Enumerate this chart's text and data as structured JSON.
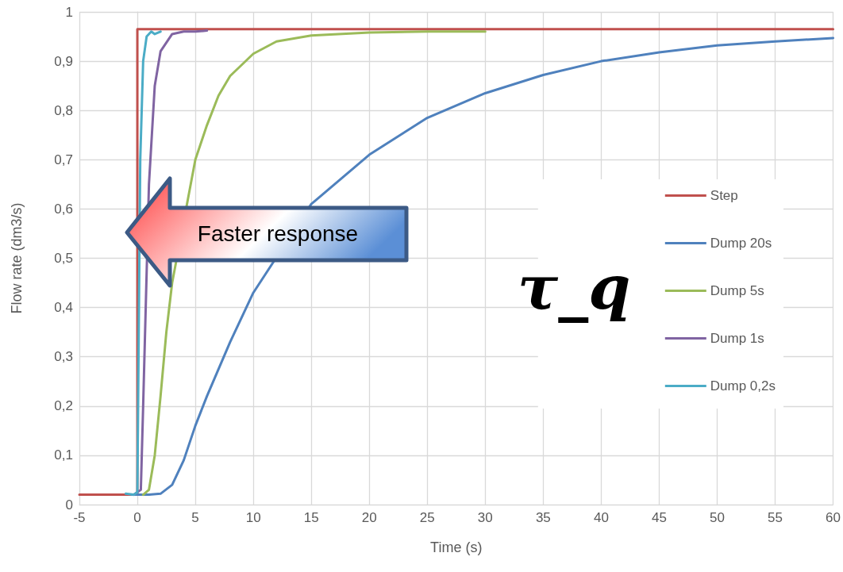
{
  "chart_data": {
    "type": "line",
    "xlabel": "Time (s)",
    "ylabel": "Flow rate (dm3/s)",
    "xlim": [
      -5,
      60
    ],
    "xticks": [
      -5,
      0,
      5,
      10,
      15,
      20,
      25,
      30,
      35,
      40,
      45,
      50,
      55,
      60
    ],
    "ylim": [
      0,
      1
    ],
    "yticks": [
      0,
      {
        "value": 0.1,
        "label": "0,1"
      },
      {
        "value": 0.2,
        "label": "0,2"
      },
      {
        "value": 0.3,
        "label": "0,3"
      },
      {
        "value": 0.4,
        "label": "0,4"
      },
      {
        "value": 0.5,
        "label": "0,5"
      },
      {
        "value": 0.6,
        "label": "0,6"
      },
      {
        "value": 0.7,
        "label": "0,7"
      },
      {
        "value": 0.8,
        "label": "0,8"
      },
      {
        "value": 0.9,
        "label": "0,9"
      },
      1
    ],
    "grid": true,
    "legend": "right",
    "marker": "none",
    "line_style": "solid",
    "annotations": [
      "Faster response",
      "τ_q"
    ],
    "series": [
      {
        "name": "Step",
        "color": "#c0504d",
        "x": [
          -5,
          0,
          0,
          60
        ],
        "values": [
          0.02,
          0.02,
          0.965,
          0.965
        ]
      },
      {
        "name": "Dump 20s",
        "color": "#4f81bd",
        "x": [
          -0.5,
          0,
          1,
          2,
          3,
          4,
          5,
          6,
          8,
          10,
          15,
          20,
          25,
          30,
          35,
          40,
          45,
          50,
          55,
          60
        ],
        "values": [
          0.02,
          0.02,
          0.02,
          0.022,
          0.04,
          0.09,
          0.16,
          0.22,
          0.33,
          0.43,
          0.61,
          0.71,
          0.785,
          0.835,
          0.872,
          0.9,
          0.918,
          0.932,
          0.94,
          0.947
        ]
      },
      {
        "name": "Dump 5s",
        "color": "#9bbb59",
        "x": [
          0.5,
          1,
          1.5,
          2,
          2.5,
          3,
          5,
          6,
          7,
          8,
          10,
          12,
          15,
          20,
          25,
          30
        ],
        "values": [
          0.02,
          0.03,
          0.1,
          0.22,
          0.35,
          0.45,
          0.7,
          0.77,
          0.83,
          0.87,
          0.915,
          0.94,
          0.952,
          0.958,
          0.96,
          0.96
        ]
      },
      {
        "name": "Dump 1s",
        "color": "#8064a2",
        "x": [
          -0.3,
          0.3,
          0.5,
          1,
          1.5,
          2,
          3,
          4,
          5,
          6
        ],
        "values": [
          0.02,
          0.03,
          0.2,
          0.65,
          0.85,
          0.92,
          0.955,
          0.96,
          0.96,
          0.962
        ]
      },
      {
        "name": "Dump 0,2s",
        "color": "#4bacc6",
        "x": [
          -1,
          -0.3,
          0,
          0.1,
          0.25,
          0.5,
          0.8,
          1.2,
          1.5,
          2
        ],
        "values": [
          0.022,
          0.02,
          0.025,
          0.3,
          0.7,
          0.9,
          0.95,
          0.96,
          0.955,
          0.96
        ]
      }
    ]
  }
}
